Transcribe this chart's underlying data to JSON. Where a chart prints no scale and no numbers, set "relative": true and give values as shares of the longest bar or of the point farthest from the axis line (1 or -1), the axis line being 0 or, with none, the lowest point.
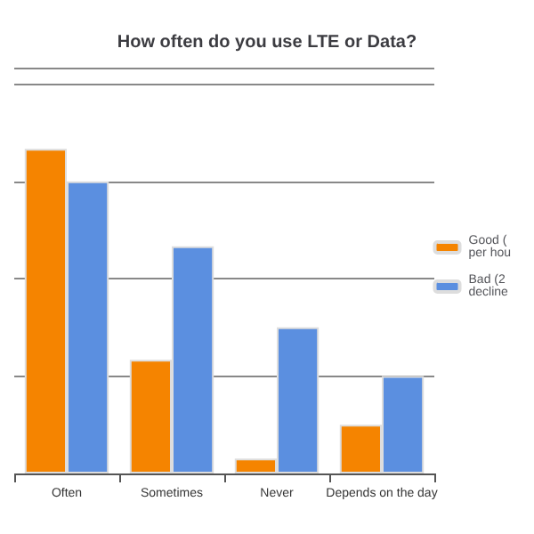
{
  "chart_data": {
    "type": "bar",
    "title": "How often do you use LTE or Data?",
    "categories": [
      "Often",
      "Sometimes",
      "Never",
      "Depends on the day"
    ],
    "relative": true,
    "grid": "y",
    "legend": "right",
    "series": [
      {
        "name": "Good (\nper hou",
        "color": "#f58400",
        "values": [
          1,
          0.35,
          0.046,
          0.15
        ]
      },
      {
        "name": "Bad (2\ndecline",
        "color": "#5b8fe0",
        "values": [
          0.9,
          0.7,
          0.45,
          0.3
        ]
      }
    ]
  }
}
